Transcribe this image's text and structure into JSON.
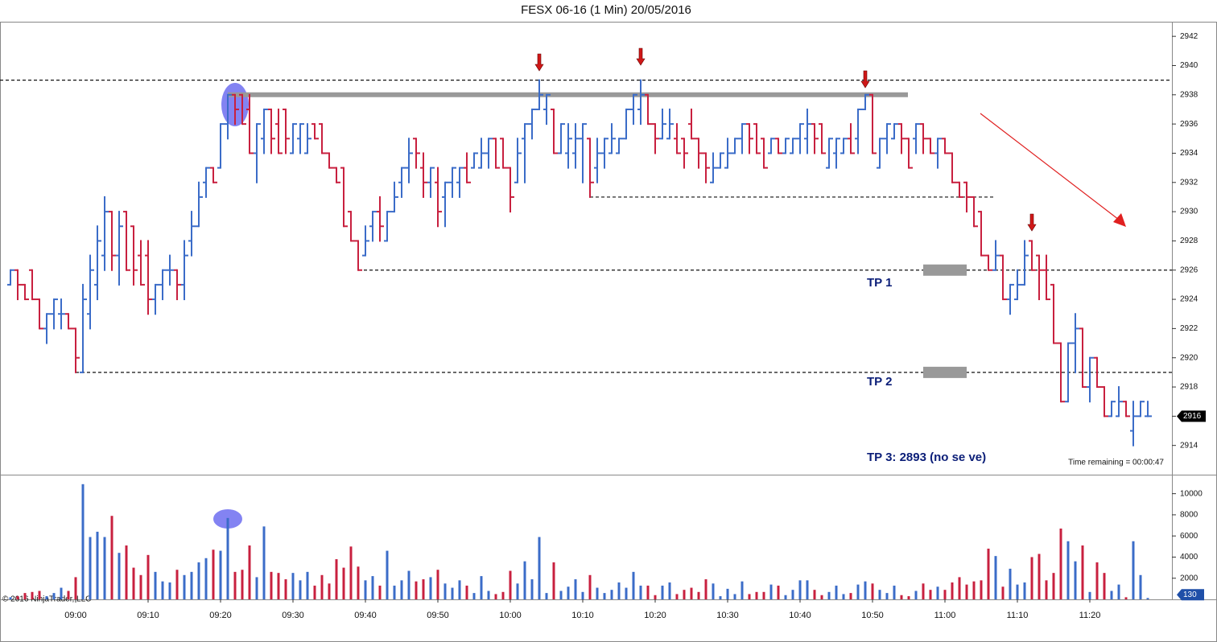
{
  "chart_data": [
    {
      "type": "ohlc",
      "title": "FESX 06-16 (1 Min)  20/05/2016",
      "categories": [
        null,
        null,
        null,
        null,
        null,
        null,
        null,
        null,
        null,
        "09:00",
        null,
        null,
        null,
        null,
        null,
        null,
        null,
        null,
        null,
        "09:10",
        null,
        null,
        null,
        null,
        null,
        null,
        null,
        null,
        null,
        "09:20",
        null,
        null,
        null,
        null,
        null,
        null,
        null,
        null,
        null,
        "09:30",
        null,
        null,
        null,
        null,
        null,
        null,
        null,
        null,
        null,
        "09:40",
        null,
        null,
        null,
        null,
        null,
        null,
        null,
        null,
        null,
        "09:50",
        null,
        null,
        null,
        null,
        null,
        null,
        null,
        null,
        null,
        "10:00",
        null,
        null,
        null,
        null,
        null,
        null,
        null,
        null,
        null,
        "10:10",
        null,
        null,
        null,
        null,
        null,
        null,
        null,
        null,
        null,
        "10:20",
        null,
        null,
        null,
        null,
        null,
        null,
        null,
        null,
        null,
        "10:30",
        null,
        null,
        null,
        null,
        null,
        null,
        null,
        null,
        null,
        "10:40",
        null,
        null,
        null,
        null,
        null,
        null,
        null,
        null,
        null,
        "10:50",
        null,
        null,
        null,
        null,
        null,
        null,
        null,
        null,
        null,
        "11:00",
        null,
        null,
        null,
        null,
        null,
        null,
        null,
        null,
        null,
        "11:10",
        null,
        null,
        null,
        null,
        null,
        null,
        null,
        null,
        null,
        "11:20",
        null,
        null,
        null,
        null,
        null,
        null,
        null,
        null
      ],
      "open": [
        2925,
        2926,
        2925,
        2926,
        2924,
        2922,
        2923,
        2923,
        2923,
        2922,
        2919,
        2923,
        2925,
        2927,
        2930,
        2927,
        2930,
        2929,
        2927,
        2927,
        2924,
        2925,
        2926,
        2926,
        2925,
        2928,
        2929,
        2932,
        2933,
        2933,
        2936,
        2938,
        2938,
        2937,
        2934,
        2935,
        2937,
        2936,
        2937,
        2934,
        2935,
        2934,
        2936,
        2936,
        2934,
        2933,
        2933,
        2930,
        2928,
        2927,
        2929,
        2930,
        2928,
        2930,
        2932,
        2933,
        2935,
        2933,
        2932,
        2932,
        2931,
        2932,
        2932,
        2933,
        2933,
        2933,
        2934,
        2935,
        2935,
        2933,
        2932,
        2935,
        2936,
        2937,
        2937,
        2937,
        2934,
        2934,
        2934,
        2935,
        2935,
        2933,
        2934,
        2934,
        2934,
        2935,
        2937,
        2937,
        2938,
        2936,
        2935,
        2935,
        2935,
        2935,
        2936,
        2935,
        2934,
        2932,
        2933,
        2933,
        2934,
        2935,
        2936,
        2936,
        2935,
        2934,
        2935,
        2934,
        2934,
        2935,
        2935,
        2936,
        2936,
        2933,
        2934,
        2934,
        2935,
        2935,
        2937,
        2938,
        2933,
        2935,
        2935,
        2936,
        2935,
        2935,
        2936,
        2935,
        2934,
        2935,
        2934,
        2932,
        2932,
        2931,
        2930,
        2927,
        2926,
        2927,
        2924,
        2924,
        2925,
        2928,
        2927,
        2926,
        2925,
        2921,
        2917,
        2921,
        2922,
        2918,
        2920,
        2918,
        2916,
        2916,
        2917,
        2915,
        2916,
        2916
      ],
      "high": [
        2926,
        2926,
        2925,
        2926,
        2924,
        2923,
        2924,
        2924,
        2923,
        2922,
        2925,
        2927,
        2929,
        2931,
        2930,
        2930,
        2930,
        2929,
        2928,
        2928,
        2925,
        2926,
        2927,
        2926,
        2928,
        2930,
        2932,
        2933,
        2933,
        2936,
        2938,
        2938,
        2938,
        2938,
        2936,
        2937,
        2937,
        2937,
        2937,
        2936,
        2936,
        2936,
        2936,
        2936,
        2934,
        2933,
        2933,
        2930,
        2928,
        2929,
        2930,
        2931,
        2930,
        2932,
        2933,
        2935,
        2935,
        2934,
        2933,
        2933,
        2932,
        2933,
        2933,
        2934,
        2934,
        2935,
        2935,
        2935,
        2935,
        2933,
        2935,
        2936,
        2937,
        2939,
        2938,
        2937,
        2936,
        2936,
        2936,
        2936,
        2935,
        2935,
        2935,
        2936,
        2935,
        2937,
        2938,
        2939,
        2938,
        2936,
        2937,
        2937,
        2936,
        2935,
        2937,
        2935,
        2934,
        2934,
        2934,
        2935,
        2935,
        2936,
        2936,
        2936,
        2935,
        2935,
        2935,
        2935,
        2935,
        2936,
        2937,
        2936,
        2936,
        2935,
        2935,
        2935,
        2936,
        2937,
        2938,
        2938,
        2935,
        2936,
        2936,
        2936,
        2935,
        2936,
        2936,
        2935,
        2935,
        2935,
        2934,
        2932,
        2932,
        2931,
        2930,
        2927,
        2928,
        2927,
        2925,
        2926,
        2928,
        2928,
        2927,
        2927,
        2925,
        2921,
        2921,
        2923,
        2922,
        2920,
        2920,
        2918,
        2917,
        2918,
        2917,
        2917,
        2917,
        2917
      ],
      "low": [
        2925,
        2924,
        2924,
        2924,
        2922,
        2921,
        2922,
        2922,
        2922,
        2919,
        2919,
        2922,
        2924,
        2926,
        2926,
        2925,
        2926,
        2925,
        2925,
        2923,
        2923,
        2924,
        2925,
        2924,
        2924,
        2927,
        2929,
        2931,
        2932,
        2933,
        2935,
        2936,
        2936,
        2934,
        2932,
        2934,
        2934,
        2934,
        2934,
        2934,
        2934,
        2934,
        2935,
        2934,
        2933,
        2932,
        2929,
        2928,
        2926,
        2927,
        2928,
        2928,
        2928,
        2930,
        2931,
        2932,
        2933,
        2931,
        2931,
        2929,
        2929,
        2931,
        2931,
        2932,
        2933,
        2933,
        2933,
        2933,
        2933,
        2930,
        2932,
        2932,
        2935,
        2937,
        2936,
        2934,
        2934,
        2933,
        2933,
        2932,
        2931,
        2932,
        2933,
        2934,
        2934,
        2935,
        2936,
        2936,
        2936,
        2934,
        2935,
        2935,
        2934,
        2933,
        2935,
        2933,
        2932,
        2932,
        2933,
        2933,
        2934,
        2934,
        2934,
        2934,
        2933,
        2934,
        2934,
        2934,
        2934,
        2934,
        2934,
        2934,
        2934,
        2933,
        2933,
        2934,
        2934,
        2934,
        2937,
        2934,
        2933,
        2934,
        2935,
        2934,
        2933,
        2934,
        2934,
        2934,
        2933,
        2934,
        2932,
        2931,
        2930,
        2929,
        2927,
        2926,
        2926,
        2924,
        2923,
        2924,
        2925,
        2926,
        2924,
        2924,
        2921,
        2917,
        2917,
        2919,
        2918,
        2917,
        2918,
        2916,
        2916,
        2916,
        2916,
        2914,
        2916,
        2916
      ],
      "close": [
        2926,
        2925,
        2924,
        2924,
        2922,
        2923,
        2924,
        2923,
        2922,
        2920,
        2924,
        2926,
        2928,
        2930,
        2927,
        2929,
        2926,
        2926,
        2925,
        2924,
        2925,
        2926,
        2926,
        2925,
        2927,
        2929,
        2931,
        2933,
        2932,
        2936,
        2938,
        2937,
        2936,
        2934,
        2936,
        2937,
        2935,
        2934,
        2935,
        2936,
        2936,
        2935,
        2935,
        2934,
        2933,
        2932,
        2929,
        2928,
        2926,
        2928,
        2930,
        2929,
        2930,
        2931,
        2933,
        2934,
        2934,
        2932,
        2933,
        2930,
        2932,
        2933,
        2933,
        2932,
        2934,
        2934,
        2935,
        2933,
        2933,
        2931,
        2934,
        2936,
        2937,
        2938,
        2938,
        2934,
        2936,
        2935,
        2935,
        2936,
        2932,
        2934,
        2935,
        2935,
        2935,
        2937,
        2938,
        2938,
        2936,
        2935,
        2936,
        2936,
        2934,
        2934,
        2935,
        2934,
        2933,
        2933,
        2934,
        2934,
        2935,
        2936,
        2935,
        2934,
        2933,
        2935,
        2934,
        2935,
        2935,
        2936,
        2936,
        2935,
        2934,
        2935,
        2935,
        2935,
        2934,
        2937,
        2938,
        2934,
        2935,
        2936,
        2936,
        2935,
        2933,
        2936,
        2935,
        2934,
        2935,
        2934,
        2932,
        2931,
        2931,
        2929,
        2927,
        2926,
        2927,
        2924,
        2925,
        2925,
        2927,
        2926,
        2926,
        2924,
        2921,
        2917,
        2921,
        2922,
        2918,
        2920,
        2918,
        2916,
        2917,
        2917,
        2916,
        2916,
        2917,
        2916
      ],
      "up_color": "#3b6cc8",
      "down_color": "#c8203f",
      "ylim": [
        2912,
        2943
      ],
      "yticks": [
        2914,
        2916,
        2918,
        2920,
        2922,
        2924,
        2926,
        2928,
        2930,
        2932,
        2934,
        2936,
        2938,
        2940,
        2942
      ],
      "levels": [
        2939,
        2938,
        2931,
        2926,
        2919
      ],
      "annotations": [
        "TP 1",
        "TP 2",
        "TP 3: 2893 (no se ve)"
      ],
      "status": "Time remaining = 00:00:47"
    },
    {
      "type": "volume",
      "values": [
        200,
        300,
        600,
        700,
        800,
        300,
        600,
        1100,
        800,
        2100,
        10900,
        5900,
        6400,
        5900,
        7900,
        4400,
        5100,
        3000,
        2300,
        4200,
        2600,
        1700,
        1600,
        2800,
        2300,
        2600,
        3500,
        3900,
        4700,
        4600,
        7700,
        2600,
        2800,
        5100,
        2100,
        6900,
        2600,
        2500,
        1900,
        2500,
        1800,
        2600,
        1300,
        2300,
        1500,
        3800,
        3000,
        5000,
        3100,
        1800,
        2200,
        1300,
        4600,
        1300,
        1800,
        2700,
        1700,
        1900,
        2100,
        2800,
        1500,
        1100,
        1800,
        1300,
        600,
        2200,
        800,
        500,
        700,
        2700,
        1500,
        3600,
        1900,
        5900,
        600,
        3500,
        800,
        1200,
        1900,
        700,
        2300,
        1100,
        600,
        900,
        1600,
        1100,
        2600,
        1300,
        1300,
        400,
        1300,
        1600,
        500,
        900,
        1100,
        700,
        1900,
        1500,
        300,
        1000,
        500,
        1700,
        500,
        700,
        700,
        1400,
        1300,
        400,
        900,
        1800,
        1800,
        900,
        400,
        700,
        1300,
        500,
        600,
        1400,
        1700,
        1500,
        900,
        600,
        1300,
        400,
        300,
        800,
        1500,
        900,
        1200,
        900,
        1600,
        2100,
        1400,
        1700,
        1800,
        4800,
        4100,
        1200,
        2900,
        1400,
        1600,
        4000,
        4300,
        1800,
        2500,
        6700,
        5500,
        3600,
        5100,
        700,
        3500,
        2500,
        800,
        1400,
        200,
        5500,
        2300,
        130
      ],
      "ylim": [
        0,
        11800
      ],
      "yticks": [
        2000,
        4000,
        6000,
        8000,
        10000
      ]
    }
  ],
  "footer": "© 2016 NinjaTrader, LLC"
}
